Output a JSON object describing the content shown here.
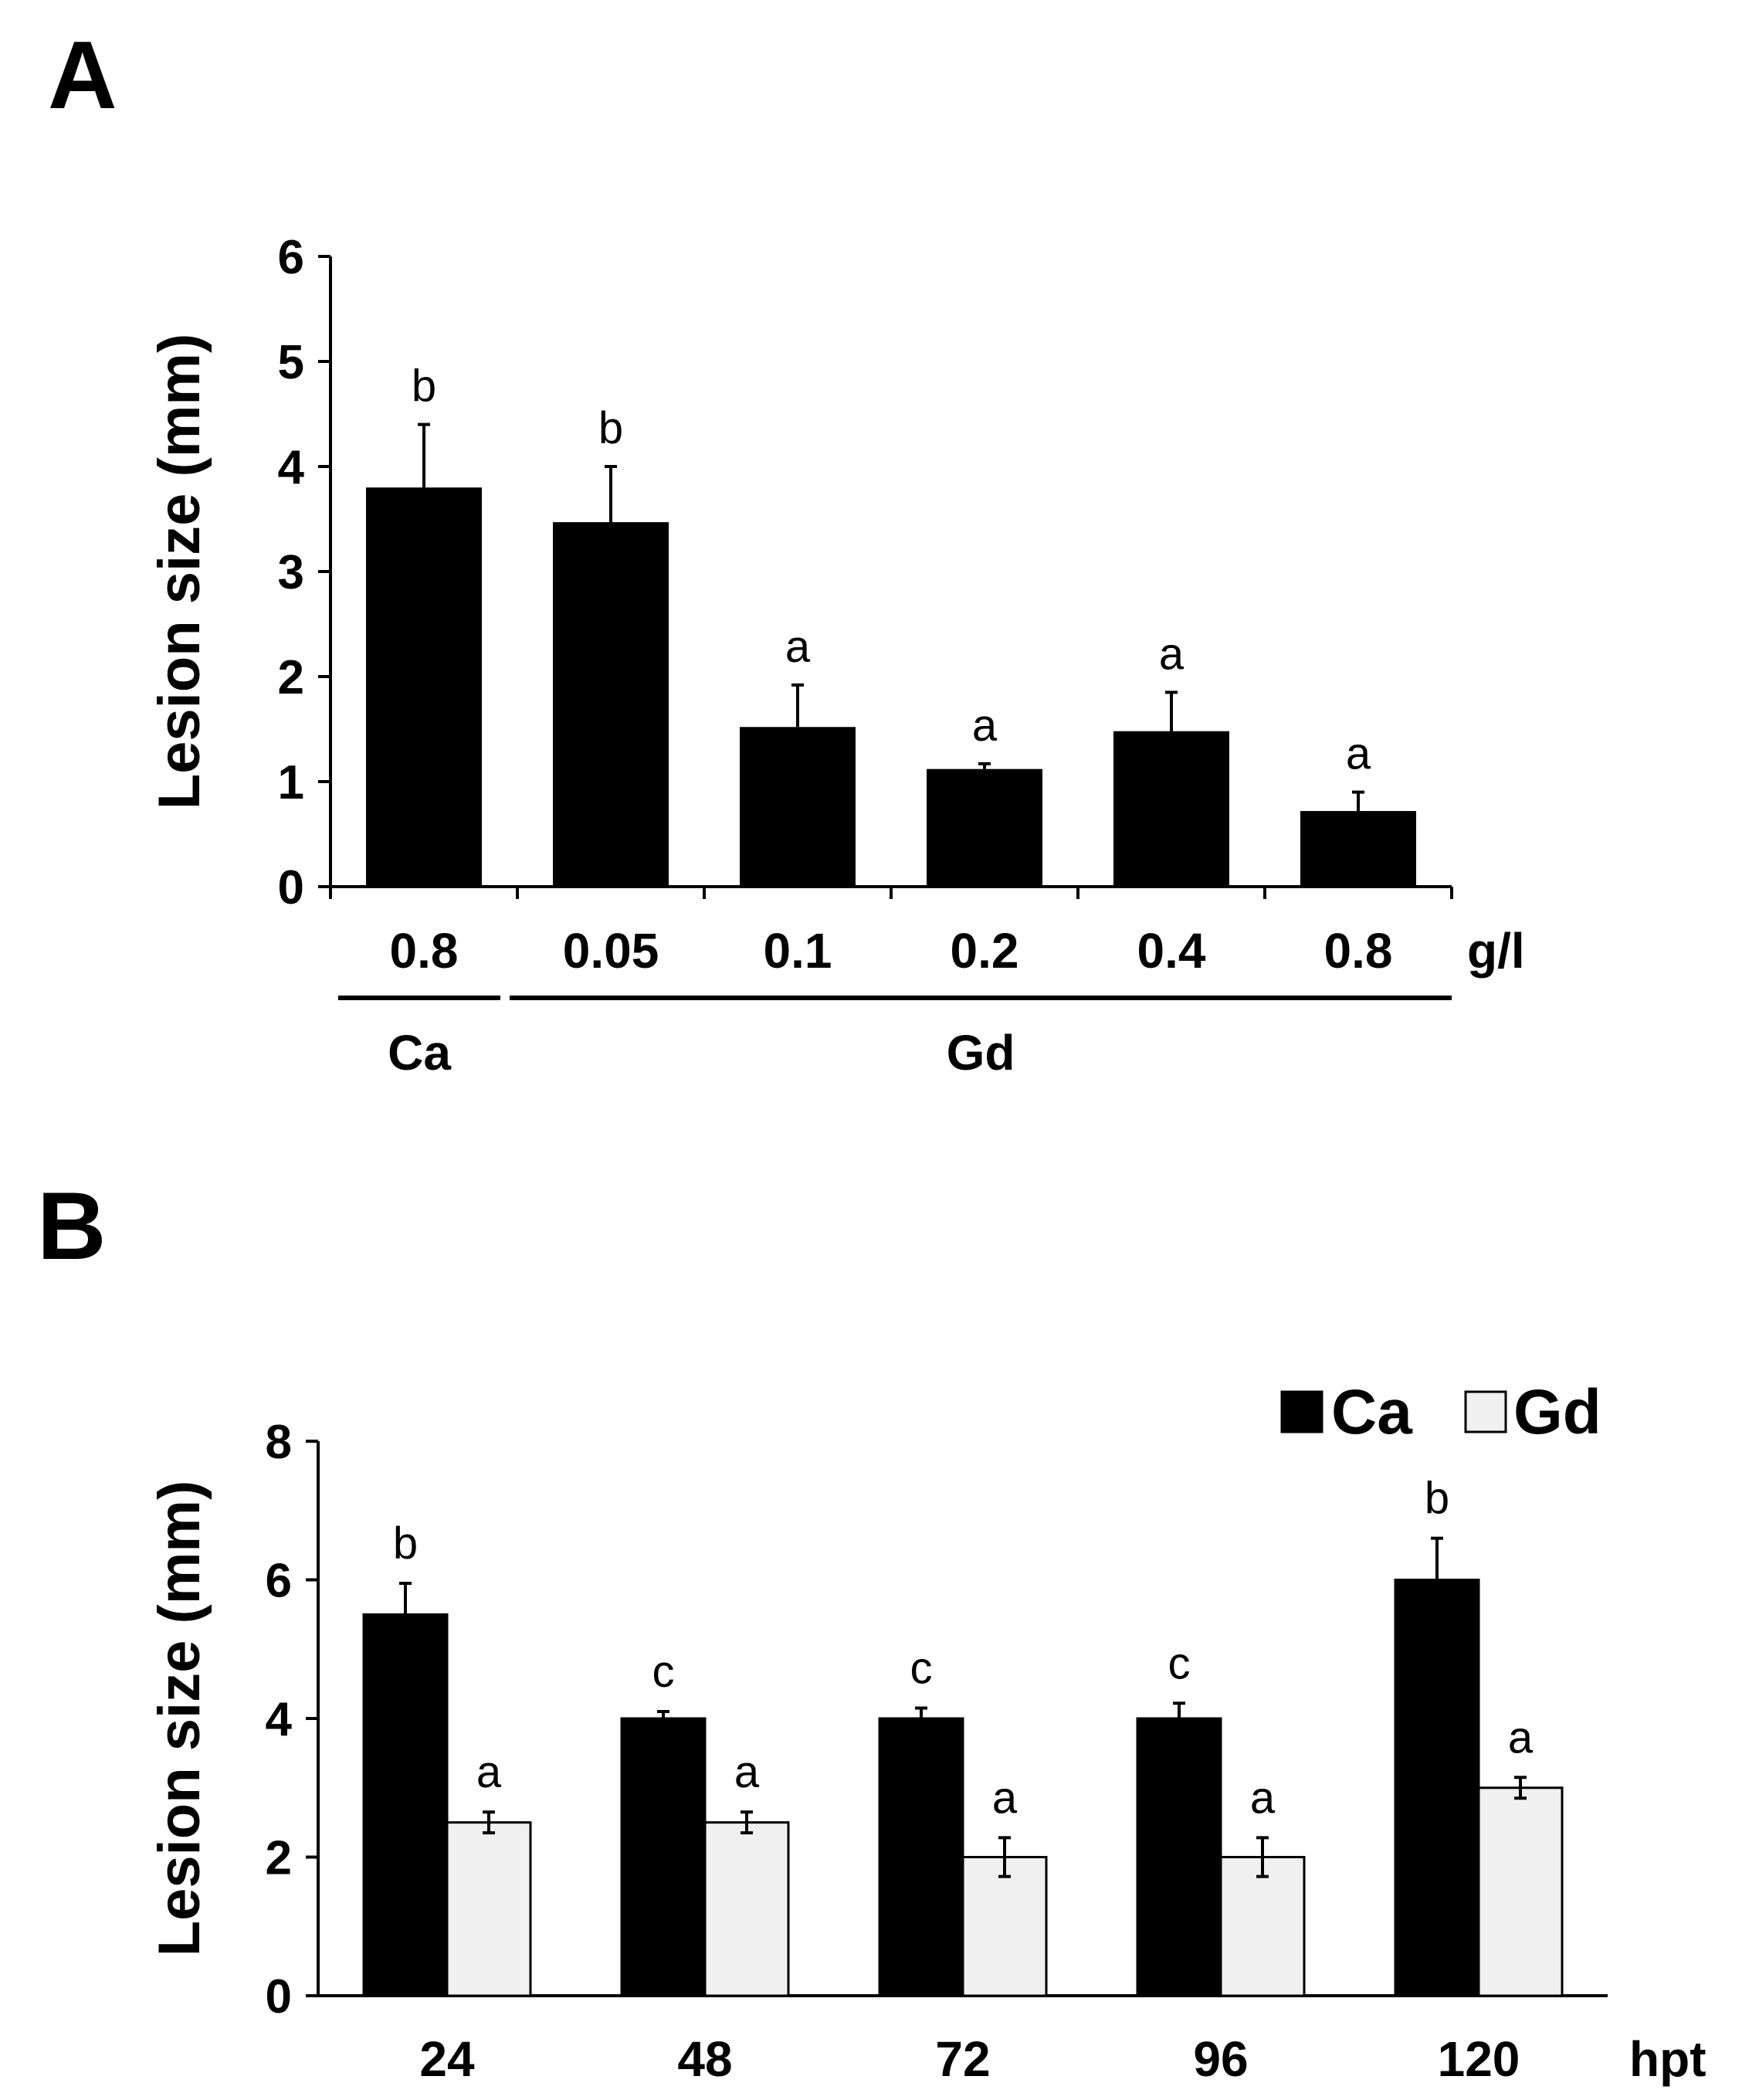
{
  "chart_data": [
    {
      "panel": "A",
      "type": "bar",
      "ylabel": "Lesion size (mm)",
      "ylim": [
        0,
        6
      ],
      "yticks": [
        "0",
        "1",
        "2",
        "3",
        "4",
        "5",
        "6"
      ],
      "categories": [
        "0.8",
        "0.05",
        "0.1",
        "0.2",
        "0.4",
        "0.8"
      ],
      "values": [
        3.8,
        3.47,
        1.52,
        1.12,
        1.48,
        0.72
      ],
      "errors": [
        0.6,
        0.53,
        0.4,
        0.05,
        0.37,
        0.18
      ],
      "significance": [
        "b",
        "b",
        "a",
        "a",
        "a",
        "a"
      ],
      "unit_label": "g/l",
      "groups": [
        {
          "label": "Ca"
        },
        {
          "label": "Gd"
        }
      ],
      "bar_color": "#000000"
    },
    {
      "panel": "B",
      "type": "bar",
      "ylabel": "Lesion size (mm)",
      "ylim": [
        0,
        8
      ],
      "yticks": [
        "0",
        "2",
        "4",
        "6",
        "8"
      ],
      "categories": [
        "24",
        "48",
        "72",
        "96",
        "120"
      ],
      "xlabel": "hpt",
      "legend_position": "top-right",
      "series": [
        {
          "name": "Ca",
          "color": "#000000",
          "values": [
            5.5,
            4.0,
            4.0,
            4.0,
            6.0
          ],
          "errors": [
            0.45,
            0.1,
            0.15,
            0.22,
            0.6
          ],
          "significance": [
            "b",
            "c",
            "c",
            "c",
            "b"
          ]
        },
        {
          "name": "Gd",
          "color": "#f0f0f0",
          "values": [
            2.5,
            2.5,
            2.0,
            2.0,
            3.0
          ],
          "errors": [
            0.15,
            0.15,
            0.28,
            0.28,
            0.15
          ],
          "significance": [
            "a",
            "a",
            "a",
            "a",
            "a"
          ]
        }
      ]
    }
  ]
}
